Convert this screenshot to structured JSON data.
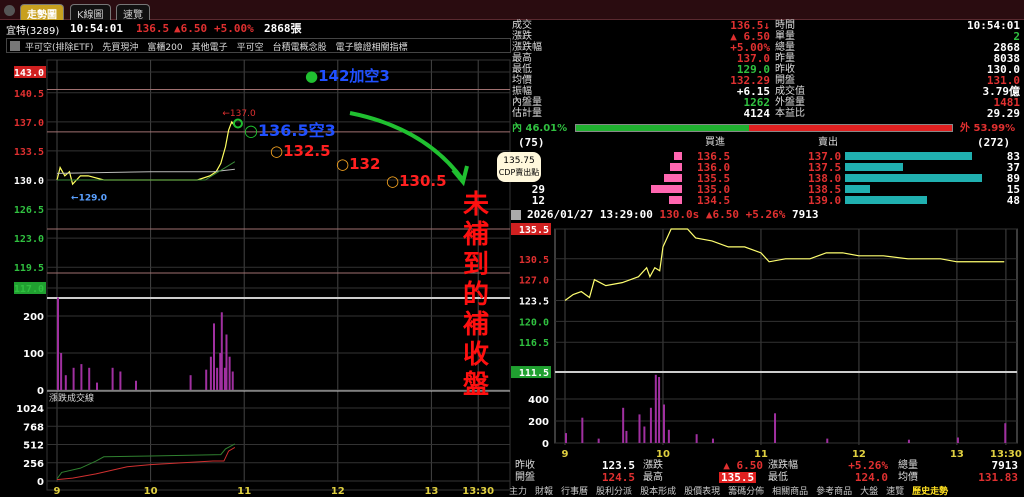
{
  "tabs": [
    "走勢圖",
    "K線圖",
    "速覽"
  ],
  "header": {
    "name": "宜特(3289)",
    "time": "10:54:01",
    "price": "136.5",
    "change": "▲6.50",
    "pct": "+5.00%",
    "volume": "2868張"
  },
  "categories": [
    "平可空(排除ETF)",
    "先買現沖",
    "富櫃200",
    "其他電子",
    "平可空",
    "台積電概念股",
    "電子驗證相關指標"
  ],
  "left_chart": {
    "price_ticks": [
      "143.0",
      "140.5",
      "137.0",
      "133.5",
      "130.0",
      "126.5",
      "123.0",
      "119.5",
      "117.0"
    ],
    "vol_ticks": [
      "200",
      "100",
      "0"
    ],
    "cum_title": "漲跌成交線",
    "cum_ticks": [
      "1024",
      "768",
      "512",
      "256",
      "0"
    ],
    "x_ticks": [
      "9",
      "10",
      "11",
      "12",
      "13",
      "13:30"
    ],
    "high_label": "←137.0",
    "low_label": "←129.0"
  },
  "annotations": {
    "a1": "142加空3",
    "a2": "136.5空3",
    "a3": "132.5",
    "a4": "132",
    "a5": "130.5",
    "vertical": "未補到的補收盤"
  },
  "callout": {
    "value": "135.75",
    "label": "CDP賣出點"
  },
  "quote": {
    "rows": [
      {
        "l": "成交",
        "v": "136.5↓",
        "c": "red",
        "l2": "時間",
        "v2": "10:54:01",
        "c2": "white"
      },
      {
        "l": "漲跌",
        "v": "▲ 6.50",
        "c": "red",
        "l2": "單量",
        "v2": "2",
        "c2": "green"
      },
      {
        "l": "漲跌幅",
        "v": "+5.00%",
        "c": "red",
        "l2": "總量",
        "v2": "2868",
        "c2": "white"
      },
      {
        "l": "最高",
        "v": "137.0",
        "c": "red",
        "l2": "昨量",
        "v2": "8038",
        "c2": "white"
      },
      {
        "l": "最低",
        "v": "129.0",
        "c": "green",
        "l2": "昨收",
        "v2": "130.0",
        "c2": "white"
      },
      {
        "l": "均價",
        "v": "132.29",
        "c": "red",
        "l2": "開盤",
        "v2": "131.0",
        "c2": "red"
      },
      {
        "l": "振幅",
        "v": "+6.15",
        "c": "white",
        "l2": "成交值",
        "v2": "3.79億",
        "c2": "white"
      },
      {
        "l": "內盤量",
        "v": "1262",
        "c": "green",
        "l2": "外盤量",
        "v2": "1481",
        "c2": "red"
      },
      {
        "l": "估計量",
        "v": "4124",
        "c": "white",
        "l2": "本益比",
        "v2": "29.29",
        "c2": "white"
      }
    ],
    "inner_label": "內",
    "inner_pct": "46.01%",
    "outer_label": "外",
    "outer_pct": "53.99%",
    "inner_fraction": 0.4601
  },
  "orderbook": {
    "bid_total": "(75)",
    "ask_total": "(272)",
    "bid_title": "買進",
    "ask_title": "賣出",
    "rows": [
      {
        "bq": "",
        "bp": "136.5",
        "ap": "137.0",
        "aq": "83"
      },
      {
        "bq": "",
        "bp": "136.0",
        "ap": "137.5",
        "aq": "37"
      },
      {
        "bq": "",
        "bp": "135.5",
        "ap": "138.0",
        "aq": "89"
      },
      {
        "bq": "29",
        "bp": "135.0",
        "ap": "138.5",
        "aq": "15"
      },
      {
        "bq": "12",
        "bp": "134.5",
        "ap": "139.0",
        "aq": "48"
      }
    ],
    "bid_bar": [
      0.18,
      0.27,
      0.4,
      0.7,
      0.3
    ],
    "ask_bar": [
      0.93,
      0.42,
      1.0,
      0.18,
      0.6
    ]
  },
  "history": {
    "header": {
      "date": "2026/01/27",
      "time": "13:29:00",
      "price": "130.0s",
      "change": "▲6.50",
      "pct": "+5.26%",
      "vol": "7913"
    },
    "price_ticks": [
      "135.5",
      "130.5",
      "127.0",
      "123.5",
      "120.0",
      "116.5",
      "111.5"
    ],
    "vol_ticks": [
      "400",
      "200",
      "0"
    ],
    "x_ticks": [
      "9",
      "10",
      "11",
      "12",
      "13",
      "13:30"
    ],
    "footer": [
      {
        "l": "昨收",
        "v": "123.5",
        "c": "white"
      },
      {
        "l": "漲跌",
        "v": "▲ 6.50",
        "c": "red"
      },
      {
        "l": "漲跌幅",
        "v": "+5.26%",
        "c": "red"
      },
      {
        "l": "總量",
        "v": "7913",
        "c": "white"
      },
      {
        "l": "開盤",
        "v": "124.5",
        "c": "red"
      },
      {
        "l": "最高",
        "v": "135.5",
        "c": "hl"
      },
      {
        "l": "最低",
        "v": "124.0",
        "c": "red"
      },
      {
        "l": "均價",
        "v": "131.83",
        "c": "red"
      }
    ]
  },
  "bottom_tabs": [
    "主力",
    "財報",
    "行事曆",
    "股利分派",
    "股本形成",
    "股價表現",
    "籌碼分佈",
    "相關商品",
    "參考商品",
    "大盤",
    "速覽",
    "歷史走勢"
  ],
  "chart_data": [
    {
      "type": "line",
      "title": "宜特(3289) 走勢",
      "ylim": [
        117,
        143
      ],
      "x": [
        "9:00",
        "9:02",
        "9:05",
        "9:08",
        "9:10",
        "9:15",
        "9:20",
        "9:30",
        "9:45",
        "10:00",
        "10:15",
        "10:30",
        "10:38",
        "10:42",
        "10:45",
        "10:48",
        "10:50",
        "10:52",
        "10:54"
      ],
      "series": [
        {
          "values": [
            130,
            131.5,
            130.5,
            131,
            129.5,
            130.5,
            130.5,
            130,
            130,
            130,
            130,
            130,
            130.5,
            131,
            132,
            134,
            136,
            137,
            136.5
          ]
        }
      ],
      "volume": {
        "x": [
          "9:00",
          "9:02",
          "9:05",
          "9:10",
          "9:15",
          "9:20",
          "9:25",
          "9:35",
          "9:40",
          "9:50",
          "10:25",
          "10:35",
          "10:38",
          "10:40",
          "10:42",
          "10:44",
          "10:45",
          "10:47",
          "10:48",
          "10:50",
          "10:52"
        ],
        "values": [
          250,
          100,
          40,
          60,
          70,
          60,
          20,
          60,
          50,
          25,
          40,
          55,
          90,
          180,
          60,
          100,
          210,
          60,
          150,
          90,
          50
        ]
      }
    },
    {
      "type": "line",
      "title": "2026/01/27",
      "ylim": [
        111.5,
        135.5
      ],
      "x": [
        "9:00",
        "9:05",
        "9:10",
        "9:15",
        "9:18",
        "9:25",
        "9:35",
        "9:45",
        "9:50",
        "9:52",
        "9:55",
        "9:58",
        "10:00",
        "10:05",
        "10:15",
        "10:20",
        "10:30",
        "10:40",
        "10:50",
        "11:00",
        "11:05",
        "11:15",
        "11:30",
        "11:40",
        "11:50",
        "12:00",
        "12:15",
        "12:30",
        "12:50",
        "13:00",
        "13:20",
        "13:29"
      ],
      "series": [
        {
          "values": [
            123.5,
            124.5,
            125,
            124,
            127,
            126,
            126.5,
            127.5,
            129,
            127.5,
            129,
            128.5,
            132.5,
            135.5,
            135.5,
            134,
            133.5,
            132.5,
            132.5,
            131.5,
            130,
            130.5,
            130.5,
            131.5,
            131.5,
            131,
            131,
            130.5,
            130.5,
            130,
            130,
            130
          ]
        }
      ],
      "volume": {
        "x": [
          "9:00",
          "9:10",
          "9:20",
          "9:35",
          "9:37",
          "9:45",
          "9:48",
          "9:52",
          "9:55",
          "9:57",
          "10:00",
          "10:03",
          "10:20",
          "10:30",
          "11:08",
          "11:40",
          "12:30",
          "13:00",
          "13:29"
        ],
        "values": [
          90,
          230,
          40,
          320,
          110,
          260,
          150,
          320,
          620,
          600,
          350,
          120,
          80,
          40,
          270,
          40,
          30,
          50,
          180
        ]
      }
    }
  ]
}
